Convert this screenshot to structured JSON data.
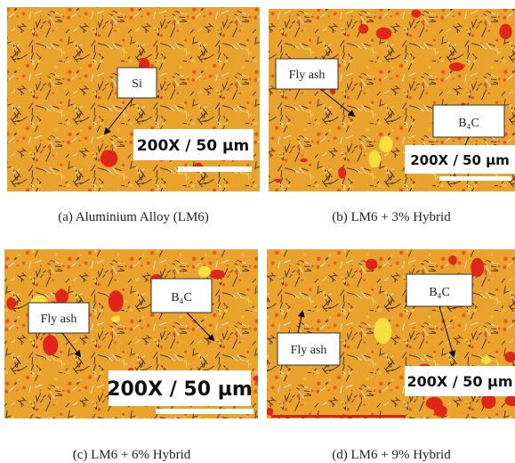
{
  "panels": [
    {
      "caption": "(a)  Aluminium Alloy (LM6)",
      "labels": [
        "Si"
      ],
      "scale": "200X / 50 µm"
    },
    {
      "caption": "(b) LM6 + 3% Hybrid",
      "labels": [
        "Fly ash",
        "B₄C"
      ],
      "scale": "200X / 50 µm"
    },
    {
      "caption": "(c) LM6 + 6% Hybrid",
      "labels": [
        "Fly ash",
        "B₄C"
      ],
      "scale": "200X / 50 µm"
    },
    {
      "caption": "(d) LM6 + 9% Hybrid",
      "labels": [
        "B₄C",
        "Fly ash"
      ],
      "scale": "200X / 50 µm"
    }
  ]
}
